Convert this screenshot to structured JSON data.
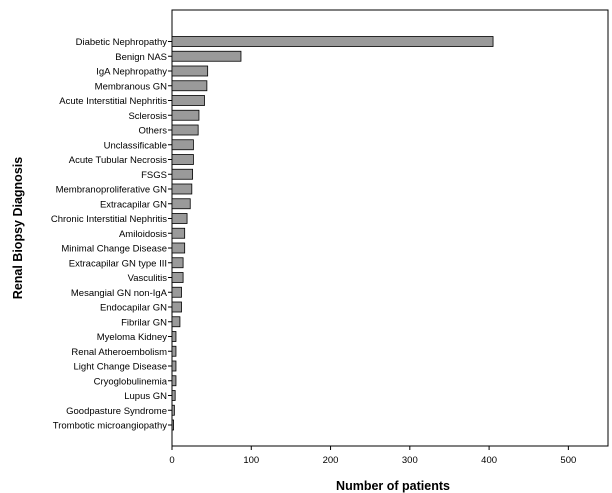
{
  "chart_data": {
    "type": "bar",
    "orientation": "horizontal",
    "categories": [
      "Diabetic Nephropathy",
      "Benign NAS",
      "IgA Nephropathy",
      "Membranous GN",
      "Acute Interstitial Nephritis",
      "Sclerosis",
      "Others",
      "Unclassificable",
      "Acute Tubular Necrosis",
      "FSGS",
      "Membranoproliferative GN",
      "Extracapilar GN",
      "Chronic Interstitial Nephritis",
      "Amiloidosis",
      "Minimal Change Disease",
      "Extracapilar GN type III",
      "Vasculitis",
      "Mesangial GN non-IgA",
      "Endocapilar GN",
      "Fibrilar GN",
      "Myeloma Kidney",
      "Renal Atheroembolism",
      "Light Change Disease",
      "Cryoglobulinemia",
      "Lupus GN",
      "Goodpasture Syndrome",
      "Trombotic microangiopathy"
    ],
    "values": [
      405,
      87,
      45,
      44,
      41,
      34,
      33,
      27,
      27,
      26,
      25,
      23,
      19,
      16,
      16,
      14,
      14,
      12,
      12,
      10,
      5,
      5,
      5,
      5,
      4,
      3,
      2
    ],
    "xlabel": "Number of patients",
    "ylabel": "Renal Biopsy Diagnosis",
    "xlim": [
      0,
      550
    ],
    "xticks": [
      0,
      100,
      200,
      300,
      400,
      500
    ],
    "grid": false,
    "bar_color": "#9a9a9a",
    "bar_edge_color": "#000000"
  }
}
